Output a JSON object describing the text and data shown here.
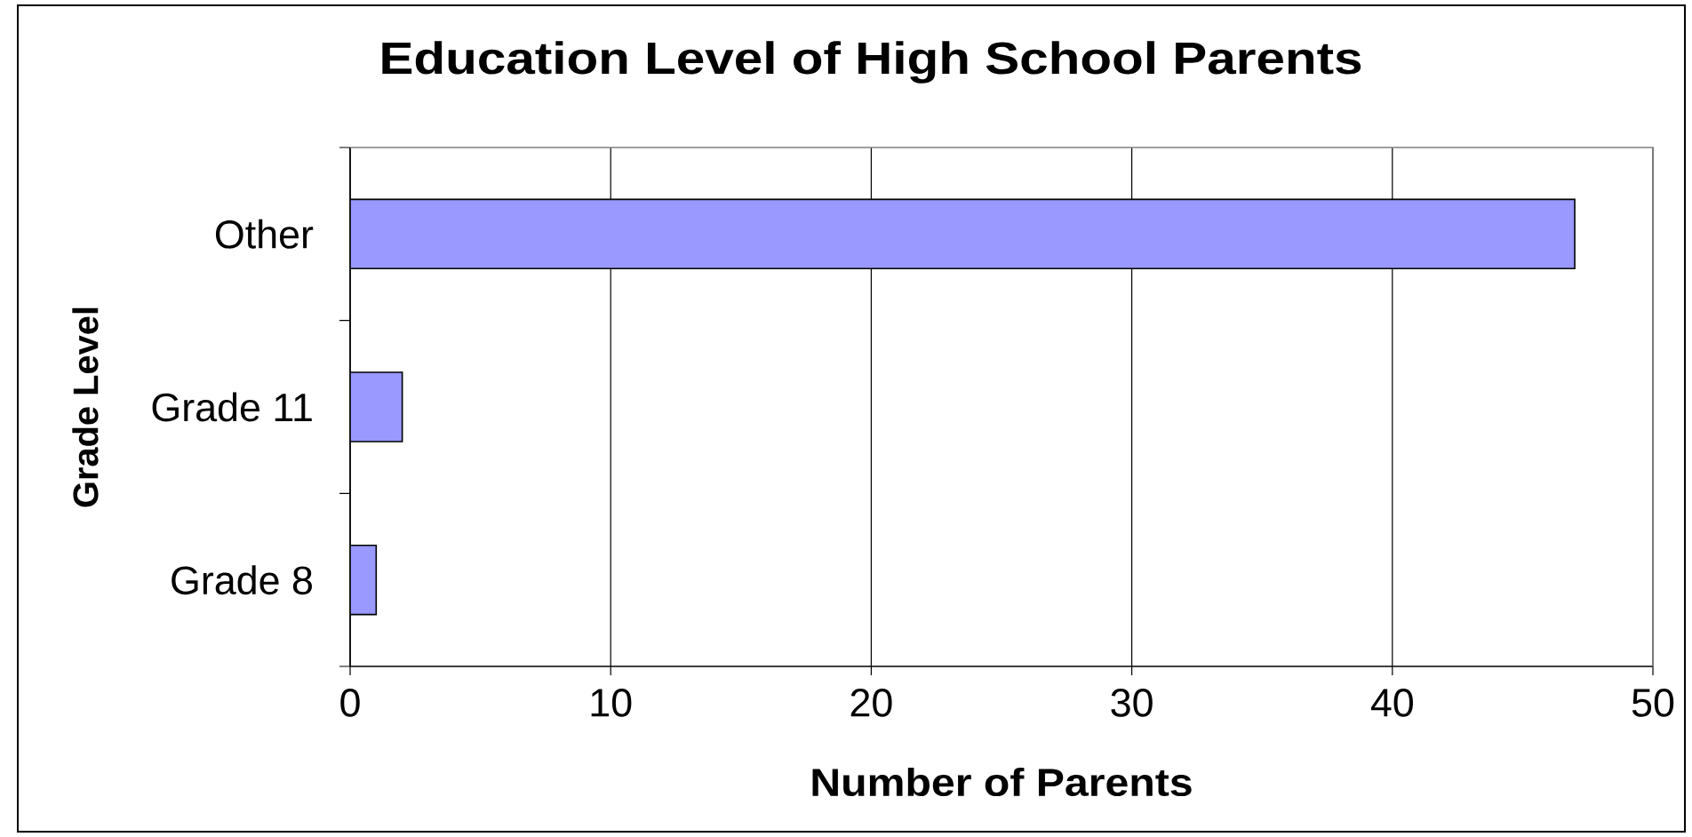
{
  "chart_data": {
    "type": "bar",
    "orientation": "horizontal",
    "title": "Education Level of High School Parents",
    "xlabel": "Number of Parents",
    "ylabel": "Grade Level",
    "categories": [
      "Other",
      "Grade 11",
      "Grade 8"
    ],
    "values": [
      47,
      2,
      1
    ],
    "color": "#9999ff",
    "xlim": [
      0,
      50
    ],
    "xticks": [
      0,
      10,
      20,
      30,
      40,
      50
    ],
    "grid": "x"
  }
}
